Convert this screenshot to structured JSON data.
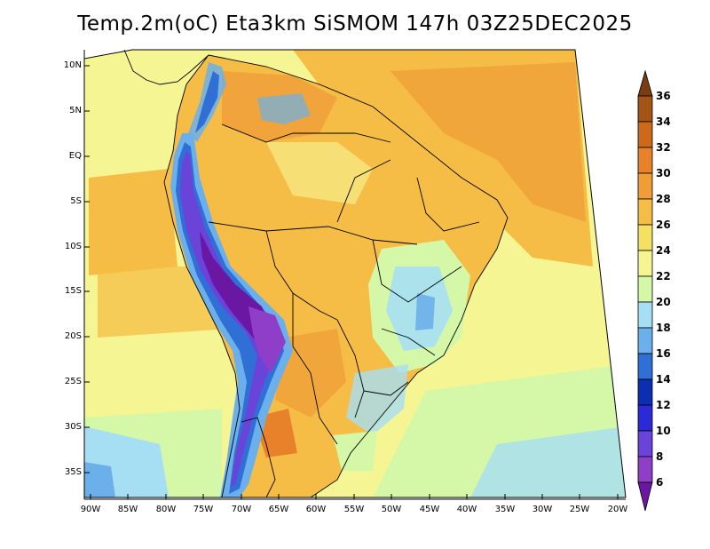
{
  "title": "Temp.2m(oC) Eta3km SiSMOM 147h 03Z25DEC2025",
  "map": {
    "variable": "2 m temperature",
    "units": "oC",
    "region": "South America",
    "lat_labels": [
      "10N",
      "5N",
      "EQ",
      "5S",
      "10S",
      "15S",
      "20S",
      "25S",
      "30S",
      "35S"
    ],
    "lon_labels": [
      "90W",
      "85W",
      "80W",
      "75W",
      "70W",
      "65W",
      "60W",
      "55W",
      "50W",
      "45W",
      "40W",
      "35W",
      "30W",
      "25W",
      "20W"
    ]
  },
  "colorbar": {
    "levels": [
      "36",
      "34",
      "32",
      "30",
      "28",
      "26",
      "24",
      "22",
      "20",
      "18",
      "16",
      "14",
      "12",
      "10",
      "8",
      "6"
    ],
    "colors": [
      "#7a3d12",
      "#a45417",
      "#cd6a1a",
      "#e8822a",
      "#f09d38",
      "#f5bd45",
      "#f4e163",
      "#f6f594",
      "#d4f7a8",
      "#a6dff3",
      "#6bb0ea",
      "#2f6fd6",
      "#0b2fb0",
      "#2a2ad8",
      "#6a44d8",
      "#8f3ec8",
      "#6a18a4"
    ]
  }
}
